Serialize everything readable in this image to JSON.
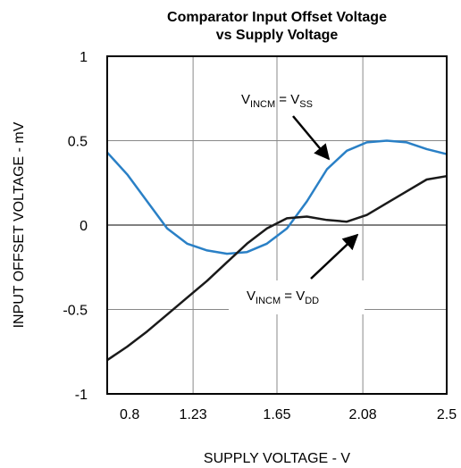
{
  "chart_data": {
    "type": "line",
    "title": [
      "Comparator Input Offset Voltage",
      "vs Supply Voltage"
    ],
    "xlabel": "SUPPLY VOLTAGE - V",
    "ylabel": "INPUT OFFSET VOLTAGE - mV",
    "x": [
      0.8,
      0.9,
      1.0,
      1.1,
      1.2,
      1.3,
      1.4,
      1.5,
      1.6,
      1.7,
      1.8,
      1.9,
      2.0,
      2.1,
      2.2,
      2.3,
      2.4,
      2.5
    ],
    "series": [
      {
        "color": "#2a80c6",
        "values": [
          0.43,
          0.3,
          0.14,
          -0.02,
          -0.11,
          -0.15,
          -0.17,
          -0.16,
          -0.11,
          -0.02,
          0.14,
          0.33,
          0.44,
          0.49,
          0.5,
          0.49,
          0.45,
          0.42
        ]
      },
      {
        "color": "#1a1a1a",
        "values": [
          -0.8,
          -0.72,
          -0.63,
          -0.53,
          -0.43,
          -0.33,
          -0.22,
          -0.11,
          -0.02,
          0.04,
          0.05,
          0.03,
          0.02,
          0.06,
          0.13,
          0.2,
          0.27,
          0.29
        ]
      }
    ],
    "xlim": [
      0.8,
      2.5
    ],
    "xticks": [
      0.8,
      1.23,
      1.65,
      2.08,
      2.5
    ],
    "ylim": [
      -1,
      1
    ],
    "yticks": [
      -1,
      -0.5,
      0,
      0.5,
      1
    ],
    "grid": true,
    "annotations": [
      {
        "parts": [
          "V",
          "INCM",
          " = V",
          "SS"
        ]
      },
      {
        "parts": [
          "V",
          "INCM",
          " = V",
          "DD"
        ]
      }
    ]
  }
}
